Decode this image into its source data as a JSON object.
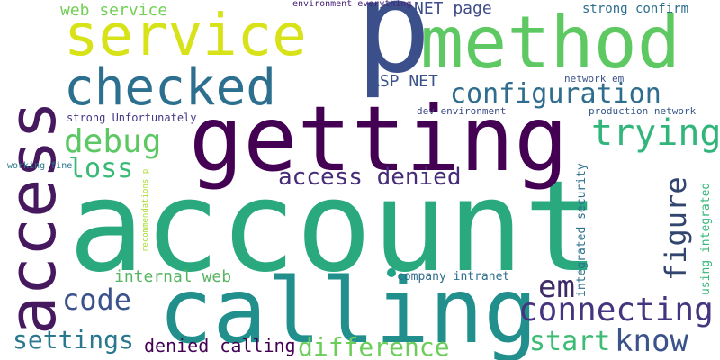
{
  "colors": {
    "background": "#ffffff",
    "palette": [
      "#440154",
      "#472c7a",
      "#3b518b",
      "#2c718e",
      "#21908d",
      "#27ad81",
      "#5cc863",
      "#aadc32",
      "#dce319"
    ]
  },
  "words": [
    {
      "text": "account",
      "color": "#2aa97e"
    },
    {
      "text": "p",
      "color": "#3b4f8a"
    },
    {
      "text": "getting",
      "color": "#440154"
    },
    {
      "text": "calling",
      "color": "#218f8c"
    },
    {
      "text": "access",
      "color": "#46185e"
    },
    {
      "text": "method",
      "color": "#5ec962"
    },
    {
      "text": "service",
      "color": "#d8e219"
    },
    {
      "text": "checked",
      "color": "#2c6f8e"
    },
    {
      "text": "configuration",
      "color": "#2e6d8e"
    },
    {
      "text": "trying",
      "color": "#31b57b"
    },
    {
      "text": "debug",
      "color": "#5cc863"
    },
    {
      "text": "loss",
      "color": "#3aba76"
    },
    {
      "text": "access denied",
      "color": "#472c7a"
    },
    {
      "text": "figure",
      "color": "#31456f"
    },
    {
      "text": "connecting",
      "color": "#45347f"
    },
    {
      "text": "em",
      "color": "#3e2a67"
    },
    {
      "text": "code",
      "color": "#3b528b"
    },
    {
      "text": "internal web",
      "color": "#57b463"
    },
    {
      "text": "settings",
      "color": "#2a788e"
    },
    {
      "text": "difference",
      "color": "#6ccd5a"
    },
    {
      "text": "start",
      "color": "#3dbc74"
    },
    {
      "text": "know",
      "color": "#3b528b"
    },
    {
      "text": "denied calling",
      "color": "#440154"
    },
    {
      "text": "web service",
      "color": "#73d055"
    },
    {
      "text": "NET page",
      "color": "#3e4c8a"
    },
    {
      "text": "strong confirm",
      "color": "#2e6d8e"
    },
    {
      "text": "ASP NET",
      "color": "#3b528b"
    },
    {
      "text": "environment everything",
      "color": "#482576"
    },
    {
      "text": "network em",
      "color": "#3b528b"
    },
    {
      "text": "strong Unfortunately",
      "color": "#443983"
    },
    {
      "text": "dev environment",
      "color": "#3e4c8a"
    },
    {
      "text": "production network",
      "color": "#38598c"
    },
    {
      "text": "working fine",
      "color": "#2a7b8e"
    },
    {
      "text": "recommendations p",
      "color": "#aadc32"
    },
    {
      "text": "integrated security",
      "color": "#2c728e"
    },
    {
      "text": "company intranet",
      "color": "#2e6d8e"
    },
    {
      "text": "using integrated",
      "color": "#35b779"
    },
    {
      "text": "dot",
      "color": "#20a386"
    }
  ]
}
